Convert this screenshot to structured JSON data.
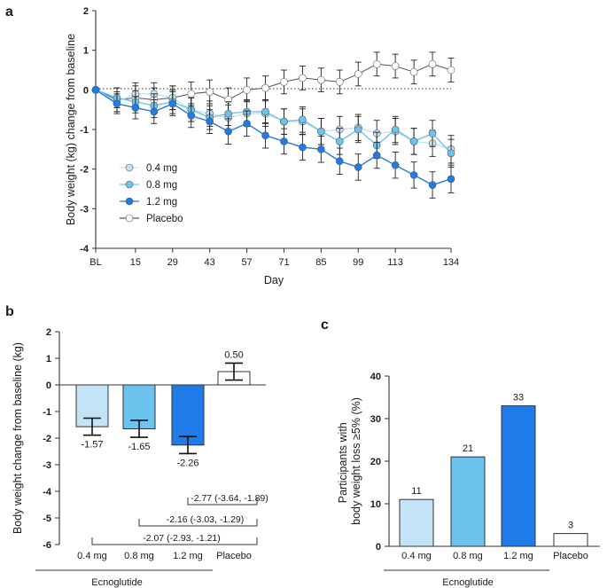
{
  "colors": {
    "dose_0_4": "#c2e4f6",
    "dose_0_8": "#6cc3ee",
    "dose_1_2": "#1f7be8",
    "placebo": "#ffffff",
    "outline": "#333333"
  },
  "chart_data": [
    {
      "panel": "a",
      "type": "line",
      "ylabel": "Body weight (kg) change from baseline",
      "xlabel": "Day",
      "ylim": [
        -4,
        2
      ],
      "yticks": [
        "2",
        "1",
        "0",
        "-1",
        "-2",
        "-3",
        "-4"
      ],
      "xticks": [
        "BL",
        "15",
        "29",
        "43",
        "57",
        "71",
        "85",
        "99",
        "113",
        "134"
      ],
      "baseline_dotted_at": 0,
      "legend_position": "center-left",
      "x": [
        0,
        8,
        15,
        22,
        29,
        36,
        43,
        50,
        57,
        64,
        71,
        78,
        85,
        92,
        99,
        106,
        113,
        120,
        127,
        134
      ],
      "series": [
        {
          "name": "0.4 mg",
          "color": "#c2e4f6",
          "values": [
            0,
            -0.3,
            -0.1,
            -0.1,
            -0.2,
            -0.5,
            -0.6,
            -0.7,
            -0.6,
            -0.6,
            -0.8,
            -0.8,
            -1.05,
            -1.0,
            -0.95,
            -1.1,
            -1.05,
            -1.3,
            -1.35,
            -1.5
          ],
          "errors": [
            0,
            0.25,
            0.28,
            0.28,
            0.3,
            0.3,
            0.32,
            0.32,
            0.32,
            0.32,
            0.32,
            0.32,
            0.33,
            0.33,
            0.33,
            0.33,
            0.33,
            0.33,
            0.33,
            0.35
          ]
        },
        {
          "name": "0.8 mg",
          "color": "#6cc3ee",
          "values": [
            0,
            -0.2,
            -0.3,
            -0.4,
            -0.3,
            -0.5,
            -0.7,
            -0.6,
            -0.55,
            -0.55,
            -0.8,
            -0.75,
            -1.05,
            -1.3,
            -1.0,
            -1.4,
            -1.0,
            -1.3,
            -1.1,
            -1.6
          ],
          "errors": [
            0,
            0.25,
            0.28,
            0.3,
            0.3,
            0.3,
            0.3,
            0.3,
            0.3,
            0.3,
            0.32,
            0.32,
            0.33,
            0.33,
            0.33,
            0.33,
            0.33,
            0.33,
            0.33,
            0.35
          ]
        },
        {
          "name": "1.2 mg",
          "color": "#1f7be8",
          "values": [
            0,
            -0.35,
            -0.45,
            -0.55,
            -0.35,
            -0.65,
            -0.8,
            -1.05,
            -0.85,
            -1.15,
            -1.3,
            -1.45,
            -1.5,
            -1.8,
            -1.95,
            -1.65,
            -1.9,
            -2.15,
            -2.4,
            -2.25
          ],
          "errors": [
            0,
            0.25,
            0.28,
            0.3,
            0.3,
            0.3,
            0.3,
            0.32,
            0.32,
            0.32,
            0.32,
            0.32,
            0.33,
            0.33,
            0.33,
            0.33,
            0.33,
            0.33,
            0.33,
            0.35
          ]
        },
        {
          "name": "Placebo",
          "color": "#ffffff",
          "values": [
            0,
            -0.25,
            -0.2,
            -0.25,
            -0.2,
            -0.1,
            -0.05,
            -0.25,
            0.0,
            0.05,
            0.2,
            0.3,
            0.25,
            0.2,
            0.4,
            0.65,
            0.6,
            0.45,
            0.65,
            0.5
          ],
          "errors": [
            0,
            0.3,
            0.3,
            0.3,
            0.3,
            0.3,
            0.3,
            0.3,
            0.3,
            0.3,
            0.3,
            0.3,
            0.3,
            0.3,
            0.3,
            0.3,
            0.3,
            0.3,
            0.3,
            0.3
          ]
        }
      ]
    },
    {
      "panel": "b",
      "type": "bar",
      "ylabel": "Body weight change from baseline (kg)",
      "ylim": [
        -6,
        2
      ],
      "yticks": [
        "2",
        "1",
        "0",
        "-1",
        "-2",
        "-3",
        "-4",
        "-5",
        "-6"
      ],
      "categories": [
        "0.4 mg",
        "0.8 mg",
        "1.2 mg",
        "Placebo"
      ],
      "group_label": "Ecnoglutide",
      "values": [
        -1.57,
        -1.65,
        -2.26,
        0.5
      ],
      "value_labels": [
        "-1.57",
        "-1.65",
        "-2.26",
        "0.50"
      ],
      "errors": [
        0.32,
        0.32,
        0.32,
        0.32
      ],
      "comparisons": [
        {
          "from": 2,
          "to": 3,
          "label": "-2.77 (-3.64, -1.89)",
          "y": -4.5
        },
        {
          "from": 1,
          "to": 3,
          "label": "-2.16 (-3.03, -1.29)",
          "y": -5.3
        },
        {
          "from": 0,
          "to": 3,
          "label": "-2.07 (-2.93, -1.21)",
          "y": -6.0
        }
      ]
    },
    {
      "panel": "c",
      "type": "bar",
      "ylabel": "Participants with body weight loss ≥5% (%)",
      "ylim": [
        0,
        40
      ],
      "yticks": [
        "40",
        "30",
        "20",
        "10",
        "0"
      ],
      "categories": [
        "0.4 mg",
        "0.8 mg",
        "1.2 mg",
        "Placebo"
      ],
      "group_label": "Ecnoglutide",
      "values": [
        11,
        21,
        33,
        3
      ],
      "value_labels": [
        "11",
        "21",
        "33",
        "3"
      ]
    }
  ]
}
